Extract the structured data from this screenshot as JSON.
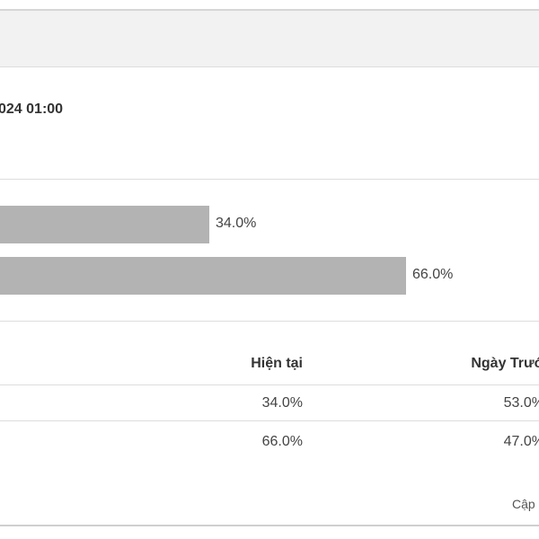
{
  "header": {
    "datetime_text": "024 01:00"
  },
  "chart_data": {
    "type": "bar",
    "orientation": "horizontal",
    "categories": [
      "",
      ""
    ],
    "values": [
      34.0,
      66.0
    ],
    "value_labels": [
      "34.0%",
      "66.0%"
    ],
    "unit": "%",
    "xlim": [
      0,
      100
    ],
    "grid": false
  },
  "table": {
    "columns": [
      "Hiện tại",
      "Ngày Trướ"
    ],
    "rows": [
      [
        "34.0%",
        "53.0%"
      ],
      [
        "66.0%",
        "47.0%"
      ]
    ]
  },
  "footer": {
    "text": "Cập"
  },
  "colors": {
    "bar": "#b3b3b3",
    "header_band": "#f2f2f2",
    "separator": "#dddddd"
  }
}
